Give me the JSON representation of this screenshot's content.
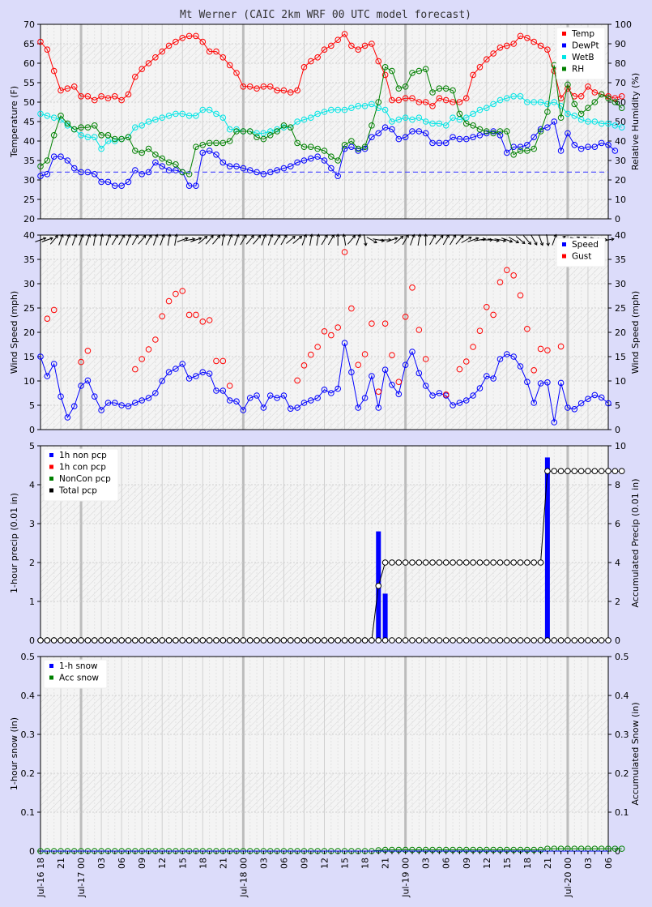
{
  "title": "Mt Werner (CAIC 2km WRF 00 UTC model forecast)",
  "hour_labels": [
    "18",
    "21",
    "00",
    "03",
    "06",
    "09",
    "12",
    "15",
    "18",
    "21",
    "00",
    "03",
    "06",
    "09",
    "12",
    "15",
    "18",
    "21",
    "00",
    "03",
    "06",
    "09",
    "12",
    "15",
    "18",
    "21",
    "00",
    "03",
    "06"
  ],
  "date_labels": [
    {
      "hour_index": 0,
      "text": "Jul-16 18"
    },
    {
      "hour_index": 6,
      "text": "Jul-17 00"
    },
    {
      "hour_index": 30,
      "text": "Jul-18 00"
    },
    {
      "hour_index": 54,
      "text": "Jul-19 00"
    },
    {
      "hour_index": 78,
      "text": "Jul-20 00"
    }
  ],
  "chart_data": [
    {
      "type": "line",
      "panel": "temperature",
      "ylabel": "Temperature (F)",
      "y2label": "Relative Humidity (%)",
      "ylim": [
        20,
        70
      ],
      "y2lim": [
        0,
        100
      ],
      "yticks": [
        20,
        25,
        30,
        35,
        40,
        45,
        50,
        55,
        60,
        65,
        70
      ],
      "y2ticks": [
        0,
        10,
        20,
        30,
        40,
        50,
        60,
        70,
        80,
        90,
        100
      ],
      "legend": [
        "Temp",
        "DewPt",
        "WetB",
        "RH"
      ],
      "legend_colors": [
        "#ff0000",
        "#0000ff",
        "#00e5e5",
        "#008000"
      ],
      "x_start_hour": 0,
      "series": [
        {
          "name": "Temp",
          "color": "#ff0000",
          "axis": "left",
          "values": [
            65.5,
            63.5,
            58,
            53,
            53.5,
            54,
            51.5,
            51.5,
            50.5,
            51.5,
            51,
            51.5,
            50.5,
            52,
            56.5,
            58.5,
            60,
            61.5,
            63,
            64.5,
            65.5,
            66.5,
            67,
            67,
            65.5,
            63,
            63,
            61.5,
            59.5,
            57.5,
            54,
            54,
            53.5,
            54,
            54,
            53,
            53,
            52.5,
            53,
            59,
            60.5,
            61.5,
            63.5,
            64.5,
            66,
            67.5,
            64.5,
            63.5,
            64.5,
            65,
            60.5,
            57,
            50.5,
            50.5,
            51,
            51,
            50,
            50,
            49,
            51,
            50.5,
            50,
            50,
            51,
            57,
            59,
            61,
            62.5,
            64,
            64.5,
            65,
            67,
            66.5,
            65.5,
            64.5,
            63.5,
            58,
            51,
            53.5,
            51.5,
            51.5,
            54,
            52.5,
            52,
            51.5,
            51,
            51.5
          ]
        },
        {
          "name": "DewPt",
          "color": "#0000ff",
          "axis": "left",
          "values": [
            31,
            31.5,
            36,
            36,
            35,
            33,
            32,
            32,
            31.5,
            29.5,
            29.5,
            28.5,
            28.5,
            29.5,
            32.5,
            31.5,
            32,
            34.5,
            33.5,
            32.5,
            32.5,
            32,
            28.5,
            28.5,
            37,
            37.5,
            36.5,
            34.5,
            33.5,
            33.5,
            33,
            32.5,
            32,
            31.5,
            32,
            32.5,
            33,
            33.5,
            34.5,
            35,
            35.5,
            36,
            35,
            33,
            31,
            38,
            38.5,
            37.5,
            38,
            41,
            42,
            43.5,
            43,
            40.5,
            41,
            42.5,
            42.5,
            42,
            39.5,
            39.5,
            39.5,
            41,
            40.5,
            40.5,
            41,
            41.5,
            42,
            42.5,
            41.5,
            37,
            38.5,
            38.5,
            39,
            41,
            43,
            43.5,
            45,
            37.5,
            42,
            39,
            38,
            38.5,
            38.5,
            39.5,
            39,
            37.5
          ]
        },
        {
          "name": "WetB",
          "color": "#00e5e5",
          "axis": "left",
          "values": [
            47,
            46.5,
            46,
            45.5,
            44,
            43,
            41.5,
            41,
            41,
            38,
            40,
            40,
            40.5,
            41,
            43.5,
            44,
            45,
            45.5,
            46,
            46.5,
            47,
            47,
            46.5,
            46.5,
            48,
            48,
            47,
            46,
            43,
            43,
            42.5,
            42.5,
            42,
            42,
            42.5,
            43,
            43.5,
            43.5,
            45,
            45.5,
            46,
            47,
            47.5,
            48,
            48,
            48,
            48.5,
            49,
            49,
            49.5,
            48.5,
            48,
            45,
            45.5,
            46,
            45.5,
            46,
            45,
            44.5,
            44.5,
            44,
            46,
            45.5,
            46,
            47,
            48,
            48.5,
            49.5,
            50.5,
            51,
            51.5,
            51.5,
            50,
            50,
            50,
            49.5,
            50,
            49,
            47,
            46.5,
            45.5,
            45,
            45,
            44.5,
            44.5,
            44,
            43.5
          ]
        },
        {
          "name": "RH",
          "color": "#008000",
          "axis": "right",
          "values": [
            27,
            30,
            43,
            53,
            49,
            46,
            47,
            47,
            48,
            43,
            43,
            41,
            41,
            42,
            35,
            34,
            36,
            33,
            31,
            29,
            28,
            24,
            23,
            37,
            38,
            39,
            39,
            39,
            40,
            45,
            45,
            45,
            42,
            41,
            43,
            45,
            48,
            47,
            39,
            37,
            37,
            36,
            35,
            32,
            30,
            38,
            40,
            36,
            37,
            48,
            60,
            78,
            76,
            67,
            68,
            75,
            76,
            77,
            65,
            67,
            67,
            66,
            54,
            49,
            48,
            46,
            45,
            44,
            45,
            45,
            33,
            35,
            35,
            36,
            45,
            55,
            79,
            52,
            69,
            59,
            54,
            57,
            60,
            64,
            62,
            60,
            57
          ]
        }
      ]
    },
    {
      "type": "scatter",
      "panel": "wind",
      "ylabel": "Wind Speed (mph)",
      "y2label": "Wind Speed (mph)",
      "ylim": [
        0,
        40
      ],
      "y2lim": [
        0,
        40
      ],
      "yticks": [
        0,
        5,
        10,
        15,
        20,
        25,
        30,
        35,
        40
      ],
      "y2ticks": [
        0,
        5,
        10,
        15,
        20,
        25,
        30,
        35,
        40
      ],
      "legend": [
        "Speed",
        "Gust"
      ],
      "legend_colors": [
        "#0000ff",
        "#ff0000"
      ],
      "x_start_hour": 0,
      "series": [
        {
          "name": "Speed",
          "color": "#0000ff",
          "style": "line",
          "values": [
            15,
            11,
            13.5,
            6.8,
            2.5,
            4.8,
            9,
            10.1,
            6.8,
            4,
            5.5,
            5.5,
            5,
            4.8,
            5.5,
            6,
            6.5,
            7.5,
            10,
            11.8,
            12.5,
            13.5,
            10.5,
            11,
            11.8,
            11.5,
            8,
            8,
            6,
            5.8,
            4,
            6.5,
            7,
            4.5,
            7,
            6.5,
            7,
            4.3,
            4.5,
            5.5,
            6,
            6.5,
            8.2,
            7.5,
            8.4,
            17.8,
            11.8,
            4.5,
            6.5,
            11,
            4.5,
            12.3,
            9.2,
            7.3,
            13.3,
            16,
            11.6,
            9,
            7,
            7.5,
            7,
            5,
            5.5,
            6,
            7,
            8.5,
            11,
            10.5,
            14.5,
            15.5,
            15,
            13,
            9.8,
            5.5,
            9.5,
            9.7,
            1.5,
            9.6,
            4.5,
            4.2,
            5.4,
            6.3,
            7.1,
            6.6,
            5.4
          ]
        },
        {
          "name": "Gust",
          "color": "#ff0000",
          "style": "points",
          "values": [
            null,
            22.8,
            24.6,
            null,
            null,
            null,
            13.9,
            16.2,
            null,
            null,
            null,
            null,
            null,
            null,
            12.4,
            14.5,
            16.5,
            18.5,
            23.3,
            26.4,
            27.9,
            28.5,
            23.6,
            23.6,
            22.2,
            22.5,
            14.1,
            14.1,
            9,
            null,
            null,
            null,
            null,
            null,
            null,
            null,
            null,
            null,
            10.1,
            13.2,
            15.4,
            17,
            20.2,
            19.4,
            21,
            36.5,
            24.9,
            13.3,
            15.5,
            21.8,
            7.8,
            21.8,
            15.3,
            9.8,
            23.2,
            29.2,
            20.5,
            14.5,
            null,
            null,
            7.2,
            null,
            12.4,
            14,
            17,
            20.3,
            25.2,
            23.6,
            30.3,
            32.8,
            31.7,
            27.6,
            20.7,
            12.2,
            16.6,
            16.3,
            null,
            17.1,
            null,
            null,
            null,
            null,
            null,
            null,
            null
          ]
        },
        {
          "name": "Direction",
          "color": "#000000",
          "style": "arrows",
          "values_deg": [
            250,
            250,
            220,
            200,
            200,
            200,
            200,
            200,
            190,
            190,
            200,
            210,
            210,
            200,
            210,
            220,
            210,
            200,
            200,
            190,
            190,
            250,
            260,
            250,
            230,
            220,
            220,
            190,
            200,
            200,
            210,
            220,
            220,
            200,
            200,
            210,
            210,
            230,
            230,
            200,
            190,
            190,
            210,
            210,
            180,
            170,
            220,
            200,
            350,
            300,
            280,
            270,
            250,
            230,
            210,
            200,
            190,
            180,
            210,
            220,
            210,
            210,
            220,
            240,
            250,
            260,
            270,
            280,
            280,
            290,
            300,
            310,
            320,
            330,
            340,
            350,
            200,
            230,
            250,
            240,
            240,
            250,
            260,
            270,
            260
          ]
        }
      ]
    },
    {
      "type": "bar",
      "panel": "precip",
      "ylabel": "1-hour precip (0.01 in)",
      "y2label": "Accumulated Precip (0.01 in)",
      "ylim": [
        0,
        5
      ],
      "y2lim": [
        0,
        10
      ],
      "yticks": [
        0,
        1,
        2,
        3,
        4,
        5
      ],
      "y2ticks": [
        0,
        2,
        4,
        6,
        8,
        10
      ],
      "legend": [
        "1h non pcp",
        "1h con pcp",
        "NonCon pcp",
        "Total pcp"
      ],
      "legend_colors": [
        "#0000ff",
        "#ff0000",
        "#008000",
        "#000000"
      ],
      "x_start_hour": 0,
      "series": [
        {
          "name": "1h non pcp",
          "color": "#0000ff",
          "bar_hours": [
            50,
            51,
            75
          ],
          "bar_values": [
            2.8,
            1.2,
            4.7
          ]
        },
        {
          "name": "Total pcp",
          "color": "#000000",
          "axis": "right",
          "values": [
            0,
            0,
            0,
            0,
            0,
            0,
            0,
            0,
            0,
            0,
            0,
            0,
            0,
            0,
            0,
            0,
            0,
            0,
            0,
            0,
            0,
            0,
            0,
            0,
            0,
            0,
            0,
            0,
            0,
            0,
            0,
            0,
            0,
            0,
            0,
            0,
            0,
            0,
            0,
            0,
            0,
            0,
            0,
            0,
            0,
            0,
            0,
            0,
            0,
            0,
            2.8,
            4,
            4,
            4,
            4,
            4,
            4,
            4,
            4,
            4,
            4,
            4,
            4,
            4,
            4,
            4,
            4,
            4,
            4,
            4,
            4,
            4,
            4,
            4,
            4,
            8.7,
            8.7,
            8.7,
            8.7,
            8.7,
            8.7,
            8.7,
            8.7,
            8.7,
            8.7,
            8.7,
            8.7
          ]
        }
      ]
    },
    {
      "type": "line",
      "panel": "snow",
      "ylabel": "1-hour snow (in)",
      "y2label": "Accumulated Snow (in)",
      "ylim": [
        0,
        0.5
      ],
      "y2lim": [
        0,
        0.5
      ],
      "yticks": [
        "0",
        "0.1",
        "0.2",
        "0.3",
        "0.4",
        "0.5"
      ],
      "y2ticks": [
        "0",
        "0.1",
        "0.2",
        "0.3",
        "0.4",
        "0.5"
      ],
      "legend": [
        "1-h snow",
        "Acc snow"
      ],
      "legend_colors": [
        "#0000ff",
        "#008000"
      ],
      "x_start_hour": 0,
      "series": [
        {
          "name": "Acc snow",
          "color": "#008000",
          "axis": "right",
          "values": [
            0,
            0,
            0,
            0,
            0,
            0,
            0,
            0,
            0,
            0,
            0,
            0,
            0,
            0,
            0,
            0,
            0,
            0,
            0,
            0,
            0,
            0,
            0,
            0,
            0,
            0,
            0,
            0,
            0,
            0,
            0,
            0,
            0,
            0,
            0,
            0,
            0,
            0,
            0,
            0,
            0,
            0,
            0,
            0,
            0,
            0,
            0,
            0,
            0,
            0,
            0.002,
            0.003,
            0.003,
            0.003,
            0.003,
            0.003,
            0.003,
            0.003,
            0.003,
            0.003,
            0.003,
            0.003,
            0.003,
            0.003,
            0.003,
            0.003,
            0.003,
            0.003,
            0.003,
            0.003,
            0.003,
            0.003,
            0.003,
            0.003,
            0.003,
            0.006,
            0.006,
            0.006,
            0.006,
            0.006,
            0.006,
            0.006,
            0.006,
            0.006,
            0.006,
            0.006,
            0.006
          ]
        }
      ]
    }
  ]
}
